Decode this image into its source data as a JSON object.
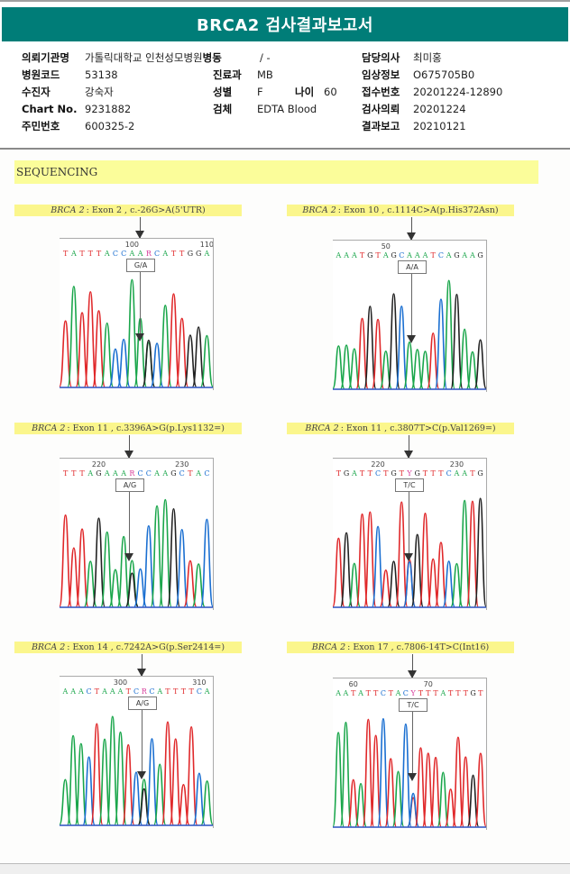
{
  "report": {
    "title": "BRCA2 검사결과보고서",
    "patient": {
      "left": [
        {
          "label": "의뢰기관명",
          "value": "가톨릭대학교 인천성모병원"
        },
        {
          "label": "병원코드",
          "value": "53138"
        },
        {
          "label": "수진자",
          "value": "강숙자"
        },
        {
          "label": "Chart No.",
          "value": "9231882"
        },
        {
          "label": "주민번호",
          "value": "600325-2"
        }
      ],
      "middle": [
        {
          "label": "병동",
          "value": "/ -"
        },
        {
          "label": "진료과",
          "value": "MB"
        },
        {
          "label": "성별",
          "value": "F"
        },
        {
          "label": "검체",
          "value": "EDTA Blood"
        }
      ],
      "age": {
        "label": "나이",
        "value": "60"
      },
      "right": [
        {
          "label": "담당의사",
          "value": "최미홍"
        },
        {
          "label": "임상정보",
          "value": "O675705B0"
        },
        {
          "label": "접수번호",
          "value": "20201224-12890"
        },
        {
          "label": "검사의뢰",
          "value": "20201224"
        },
        {
          "label": "결과보고",
          "value": "20210121"
        }
      ]
    },
    "section_title": "SEQUENCING",
    "variants": [
      {
        "gene": "BRCA 2",
        "desc": ": Exon 2 , c.-26G>A(5'UTR)",
        "genotype": "G/A",
        "sequence": "TATTTACCAARCATTGGA",
        "pos_labels": [
          {
            "text": "100",
            "at": 8
          },
          {
            "text": "110",
            "at": 17
          }
        ]
      },
      {
        "gene": "BRCA 2",
        "desc": ": Exon 10 , c.1114C>A(p.His372Asn)",
        "genotype": "A/A",
        "sequence": "AAATGTAGCAAATCAGAAG",
        "pos_labels": [
          {
            "text": "50",
            "at": 6
          }
        ]
      },
      {
        "gene": "BRCA 2",
        "desc": ": Exon 11 , c.3396A>G(p.Lys1132=)",
        "genotype": "A/G",
        "sequence": "TTTAGAAARCCAAGCTAC",
        "pos_labels": [
          {
            "text": "220",
            "at": 4
          },
          {
            "text": "230",
            "at": 14
          }
        ]
      },
      {
        "gene": "BRCA 2",
        "desc": ": Exon 11 , c.3807T>C(p.Val1269=)",
        "genotype": "T/C",
        "sequence": "TGATTCTGTYGTTTCAATG",
        "pos_labels": [
          {
            "text": "220",
            "at": 5
          },
          {
            "text": "230",
            "at": 15
          }
        ]
      },
      {
        "gene": "BRCA 2",
        "desc": ": Exon 14 , c.7242A>G(p.Ser2414=)",
        "genotype": "A/G",
        "sequence": "AAACTAAATCRCATTTTCA",
        "pos_labels": [
          {
            "text": "300",
            "at": 7
          },
          {
            "text": "310",
            "at": 17
          }
        ]
      },
      {
        "gene": "BRCA 2",
        "desc": ": Exon 17 , c.7806-14T>C(Int16)",
        "genotype": "T/C",
        "sequence": "AATATTCTACYTTTATTTGT",
        "pos_labels": [
          {
            "text": "60",
            "at": 2
          },
          {
            "text": "70",
            "at": 12
          }
        ]
      }
    ],
    "base_colors": {
      "A": "#1aa64b",
      "C": "#1a6fd1",
      "G": "#222222",
      "T": "#e0282a",
      "R": "#d63c9a",
      "Y": "#d63c9a"
    }
  }
}
